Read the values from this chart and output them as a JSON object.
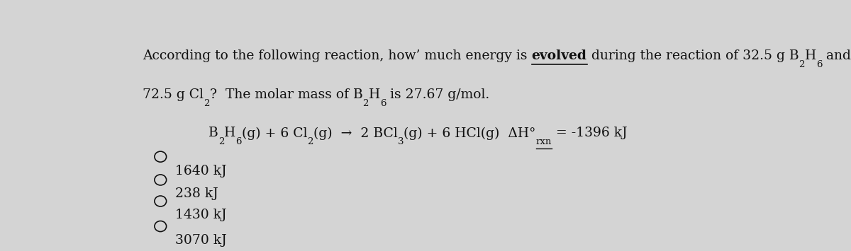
{
  "background_color": "#d4d4d4",
  "text_color": "#111111",
  "options": [
    "1640 kJ",
    "238 kJ",
    "1430 kJ",
    "3070 kJ"
  ],
  "font_size": 13.5,
  "font_size_sub": 9.5
}
